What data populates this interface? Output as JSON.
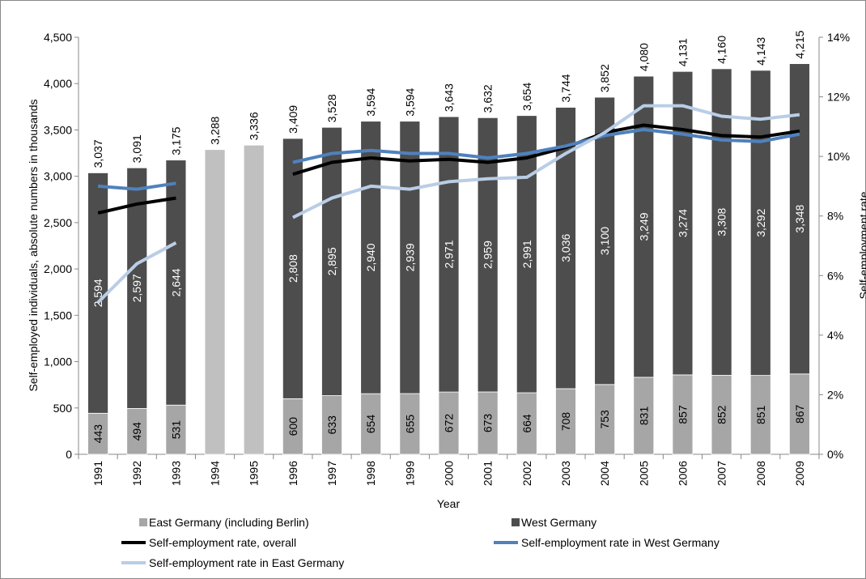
{
  "chart_data": {
    "type": "bar",
    "y_axis_label": "Self-employed individuals, absolute numbers in thousands",
    "y2_axis_label": "Self-employment rate",
    "x_axis_label": "Year",
    "categories": [
      "1991",
      "1992",
      "1993",
      "1994",
      "1995",
      "1996",
      "1997",
      "1998",
      "1999",
      "2000",
      "2001",
      "2002",
      "2003",
      "2004",
      "2005",
      "2006",
      "2007",
      "2008",
      "2009"
    ],
    "series": [
      {
        "name": "East Germany (including Berlin)",
        "type": "bar",
        "color": "#a6a6a6",
        "values": [
          443,
          494,
          531,
          null,
          null,
          600,
          633,
          654,
          655,
          672,
          673,
          664,
          708,
          753,
          831,
          857,
          852,
          851,
          867
        ]
      },
      {
        "name": "West Germany",
        "type": "bar",
        "color": "#4d4d4d",
        "values": [
          2594,
          2597,
          2644,
          null,
          null,
          2808,
          2895,
          2940,
          2939,
          2971,
          2959,
          2991,
          3036,
          3100,
          3249,
          3274,
          3308,
          3292,
          3348
        ],
        "value_labels": [
          "2,594",
          "2,597",
          "2,644",
          null,
          null,
          "2,808",
          "2,895",
          "2,940",
          "2,939",
          "2,971",
          "2,959",
          "2,991",
          "3,036",
          "3,100",
          "3,249",
          "3,274",
          "3,308",
          "3,292",
          "3,348"
        ]
      },
      {
        "name": "Self-employment rate, overall",
        "type": "line",
        "axis": "y2",
        "color": "#000000",
        "values": [
          8.1,
          8.4,
          8.6,
          null,
          null,
          9.4,
          9.8,
          9.95,
          9.85,
          9.9,
          9.8,
          9.95,
          10.3,
          10.8,
          11.05,
          10.9,
          10.7,
          10.65,
          10.85
        ]
      },
      {
        "name": "Self-employment rate in West Germany",
        "type": "line",
        "axis": "y2",
        "color": "#4f81bd",
        "values": [
          9.0,
          8.9,
          9.1,
          null,
          null,
          9.8,
          10.1,
          10.2,
          10.1,
          10.1,
          9.95,
          10.1,
          10.35,
          10.7,
          10.9,
          10.75,
          10.55,
          10.5,
          10.75
        ]
      },
      {
        "name": "Self-employment rate in East Germany",
        "type": "line",
        "axis": "y2",
        "color": "#b9cde5",
        "values": [
          5.1,
          6.4,
          7.1,
          null,
          null,
          7.95,
          8.6,
          9.0,
          8.9,
          9.15,
          9.25,
          9.3,
          10.1,
          10.8,
          11.7,
          11.7,
          11.35,
          11.25,
          11.4
        ]
      }
    ],
    "totals": {
      "color": "#c0c0c0",
      "values": [
        3037,
        3091,
        3175,
        3288,
        3336,
        3409,
        3528,
        3594,
        3594,
        3643,
        3632,
        3654,
        3744,
        3852,
        4080,
        4131,
        4160,
        4143,
        4215
      ],
      "value_labels": [
        "3,037",
        "3,091",
        "3,175",
        "3,288",
        "3,336",
        "3,409",
        "3,528",
        "3,594",
        "3,594",
        "3,643",
        "3,632",
        "3,654",
        "3,744",
        "3,852",
        "4,080",
        "4,131",
        "4,160",
        "4,143",
        "4,215"
      ]
    },
    "ylim": [
      0,
      4500
    ],
    "yticks": [
      0,
      500,
      {
        "value": 1000,
        "label": "1,000"
      },
      {
        "value": 1500,
        "label": "1,500"
      },
      {
        "value": 2000,
        "label": "2,000"
      },
      {
        "value": 2500,
        "label": "2,500"
      },
      {
        "value": 3000,
        "label": "3,000"
      },
      {
        "value": 3500,
        "label": "3,500"
      },
      {
        "value": 4000,
        "label": "4,000"
      },
      {
        "value": 4500,
        "label": "4,500"
      }
    ],
    "y2lim": [
      0,
      14
    ],
    "y2ticks": [
      {
        "value": 0,
        "label": "0%"
      },
      {
        "value": 2,
        "label": "2%"
      },
      {
        "value": 4,
        "label": "4%"
      },
      {
        "value": 6,
        "label": "6%"
      },
      {
        "value": 8,
        "label": "8%"
      },
      {
        "value": 10,
        "label": "10%"
      },
      {
        "value": 12,
        "label": "12%"
      },
      {
        "value": 14,
        "label": "14%"
      }
    ],
    "grid": false
  }
}
